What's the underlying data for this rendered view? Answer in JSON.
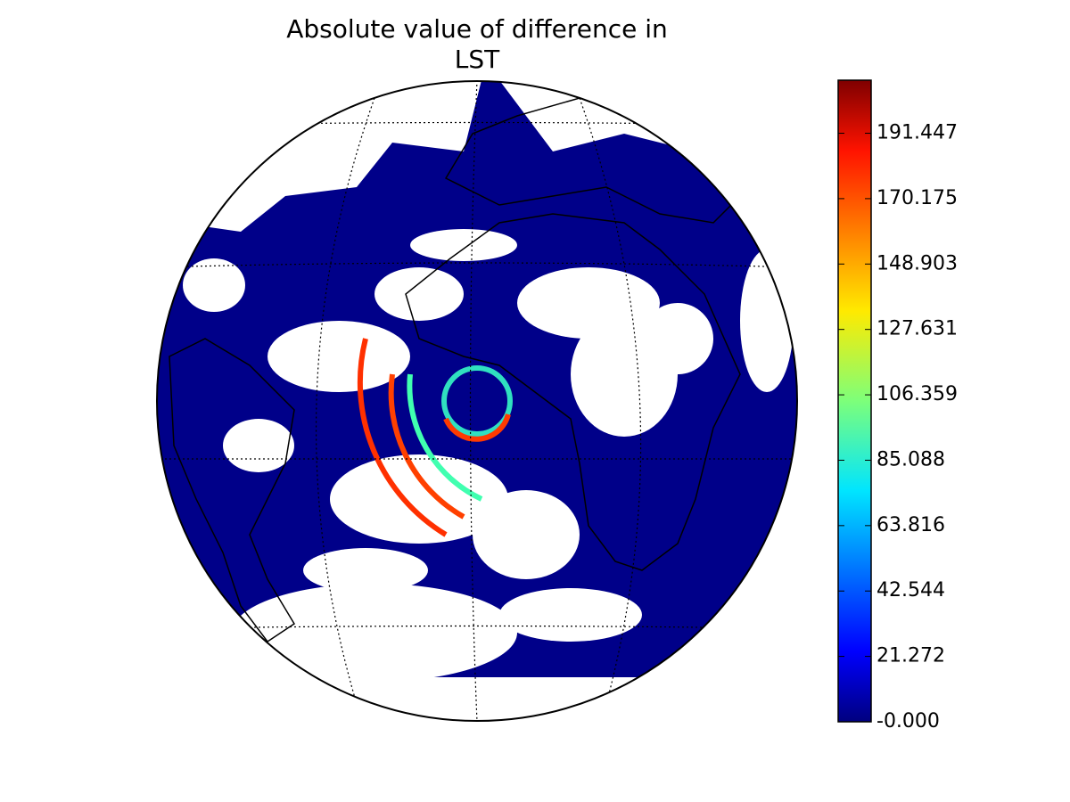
{
  "title_lines": [
    "Absolute value of difference in",
    "LST"
  ],
  "colorbar": {
    "colormap": "jet",
    "lim": [
      0,
      208.7
    ],
    "ticks": [
      {
        "value": 0,
        "label": "-0.000"
      },
      21.272,
      42.544,
      63.816,
      85.088,
      106.359,
      127.631,
      148.903,
      170.175,
      191.447
    ]
  }
}
